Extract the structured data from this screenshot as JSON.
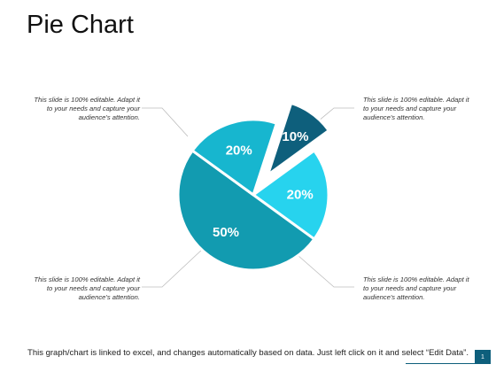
{
  "page": {
    "title": "Pie Chart",
    "footer": "This graph/chart is linked to excel, and changes automatically based on data. Just left click on it and select “Edit Data”.",
    "page_number": "1"
  },
  "callouts": [
    {
      "id": "top-left",
      "text": "This slide is 100% editable. Adapt it to your needs and capture your audience's attention."
    },
    {
      "id": "top-right",
      "text": "This slide is 100% editable. Adapt it to your needs and capture your audience's attention."
    },
    {
      "id": "bottom-left",
      "text": "This slide is 100% editable. Adapt it to your needs and capture your audience's attention."
    },
    {
      "id": "bottom-right",
      "text": "This slide is 100% editable. Adapt it to your needs and capture your audience's attention."
    }
  ],
  "chart_data": {
    "type": "pie",
    "title": "",
    "slices": [
      {
        "label": "20%",
        "value": 20,
        "color": "#27d3ee",
        "exploded": false
      },
      {
        "label": "50%",
        "value": 50,
        "color": "#129bb0",
        "exploded": false
      },
      {
        "label": "20%",
        "value": 20,
        "color": "#17b6cf",
        "exploded": false
      },
      {
        "label": "10%",
        "value": 10,
        "color": "#0e5f7c",
        "exploded": true
      }
    ],
    "start_angle_deg": -36,
    "legend": "none"
  }
}
